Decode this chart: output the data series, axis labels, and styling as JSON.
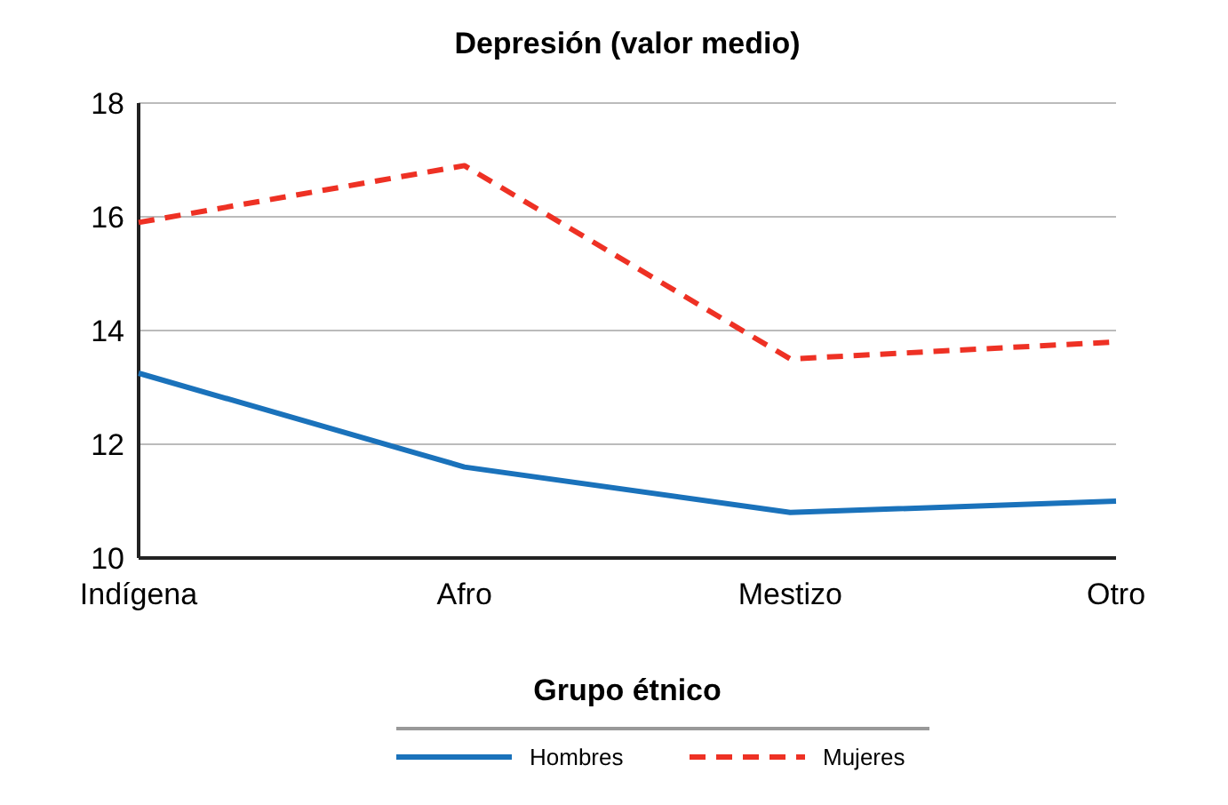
{
  "chart_data": {
    "type": "line",
    "title": "Depresión (valor medio)",
    "xlabel": "Grupo étnico",
    "categories": [
      "Indígena",
      "Afro",
      "Mestizo",
      "Otro"
    ],
    "series": [
      {
        "name": "Hombres",
        "color": "#1a72bb",
        "line_style": "solid",
        "values": [
          13.25,
          11.6,
          10.8,
          11.0
        ]
      },
      {
        "name": "Mujeres",
        "color": "#ee3124",
        "line_style": "dashed",
        "values": [
          15.9,
          16.9,
          13.5,
          13.8
        ]
      }
    ],
    "ylim": [
      10,
      18
    ],
    "yticks": [
      10,
      12,
      14,
      16,
      18
    ],
    "grid": "y",
    "legend": "bottom"
  }
}
